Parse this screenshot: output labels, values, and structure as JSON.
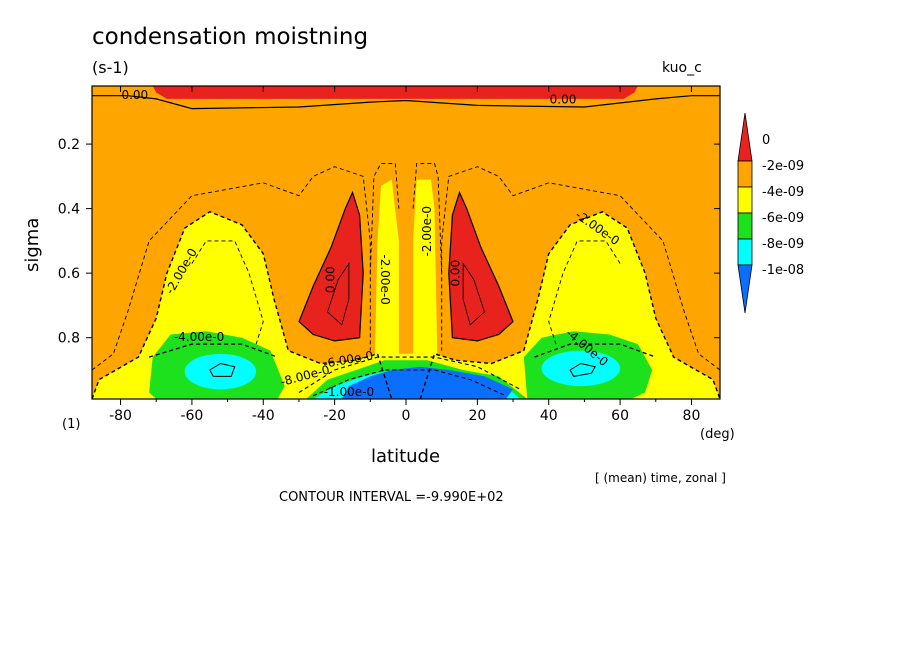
{
  "chart_data": {
    "type": "heatmap",
    "title": "condensation moistning",
    "units": "(s-1)",
    "run_label": "kuo_c",
    "xlabel": "latitude",
    "ylabel": "sigma",
    "x_unit": "(deg)",
    "scale_label": "(1)",
    "mean_label": "[ (mean) time, zonal ]",
    "contour_interval_label": "CONTOUR INTERVAL =-9.990E+02",
    "xlim": [
      -88,
      88
    ],
    "ylim_sigma_top_to_bottom": [
      0.02,
      0.99
    ],
    "x_ticks": [
      -80,
      -60,
      -40,
      -20,
      0,
      20,
      40,
      60,
      80
    ],
    "x_tick_labels": [
      "-80",
      "-60",
      "-40",
      "-20",
      "0",
      "20",
      "40",
      "60",
      "80"
    ],
    "y_ticks": [
      0.2,
      0.4,
      0.6,
      0.8
    ],
    "y_tick_labels": [
      "0.2",
      "0.4",
      "0.6",
      "0.8"
    ],
    "colorbar": {
      "levels": [
        "0",
        "-2e-09",
        "-4e-09",
        "-6e-09",
        "-8e-09",
        "-1e-08"
      ],
      "colors": [
        "#e8231e",
        "#ffa500",
        "#ffff00",
        "#1ee11e",
        "#00ffff",
        "#0a6eff"
      ]
    },
    "regions": [
      {
        "name": "upper positive band",
        "level_color": "#e8231e",
        "lat": [
          -70,
          60
        ],
        "sigma": [
          0.02,
          0.06
        ]
      },
      {
        "name": "southern upper-mid positive cell",
        "level_color": "#e8231e",
        "lat": [
          -30,
          -12
        ],
        "sigma": [
          0.36,
          0.82
        ],
        "center": [
          -18,
          0.68
        ]
      },
      {
        "name": "northern upper-mid positive cell",
        "level_color": "#e8231e",
        "lat": [
          12,
          30
        ],
        "sigma": [
          0.36,
          0.82
        ],
        "center": [
          18,
          0.68
        ]
      },
      {
        "name": "southern midlatitude moistening",
        "level_color": "#00ffff",
        "lat": [
          -68,
          -38
        ],
        "sigma": [
          0.76,
          0.99
        ],
        "center": [
          -50,
          0.9
        ],
        "min_value": -8e-09
      },
      {
        "name": "northern midlatitude moistening",
        "level_color": "#00ffff",
        "lat": [
          35,
          63
        ],
        "sigma": [
          0.76,
          0.99
        ],
        "center": [
          48,
          0.88
        ],
        "min_value": -8e-09
      },
      {
        "name": "tropical lower-level maximum",
        "level_color": "#0a6eff",
        "lat": [
          -20,
          30
        ],
        "sigma": [
          0.86,
          0.99
        ],
        "center": [
          5,
          0.95
        ],
        "min_value": -1e-08
      }
    ],
    "contour_labels": [
      "0.00",
      "0.00",
      "0.00",
      "0.00",
      "-2.00e-0",
      "-2.00e-0",
      "-2.00e-0",
      "-2.00e-0",
      "-4.00e-0",
      "-4.00e-0",
      "-6.00e-0",
      "-8.00e-0",
      "-1.00e-0"
    ]
  }
}
